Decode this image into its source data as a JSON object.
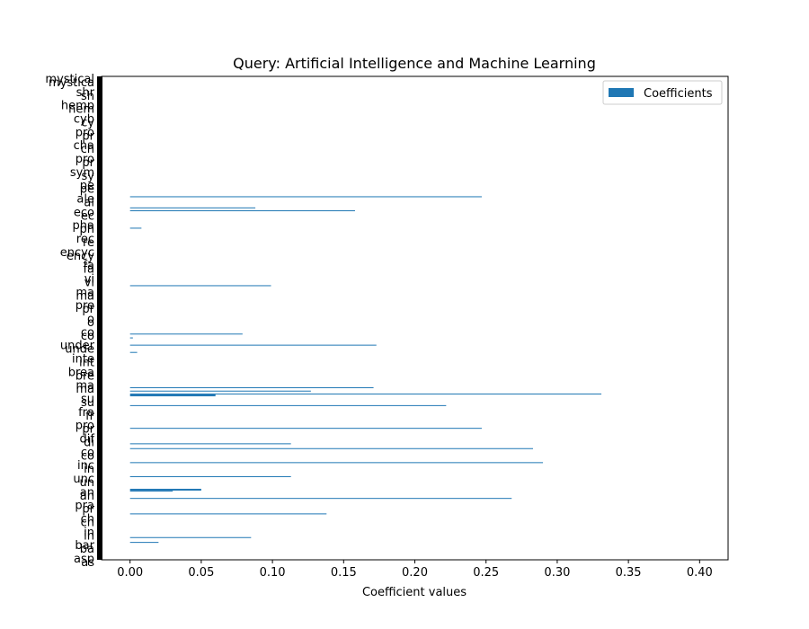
{
  "chart_data": {
    "type": "bar",
    "orientation": "horizontal",
    "title": "Query: Artificial Intelligence and Machine Learning",
    "xlabel": "Coefficient values",
    "ylabel": "",
    "xlim": [
      -0.02,
      0.42
    ],
    "xticks": [
      "0.00",
      "0.05",
      "0.10",
      "0.15",
      "0.20",
      "0.25",
      "0.30",
      "0.35",
      "0.40"
    ],
    "xtick_values": [
      0,
      0.05,
      0.1,
      0.15,
      0.2,
      0.25,
      0.3,
      0.35,
      0.4
    ],
    "legend": {
      "label": "Coefficients",
      "position": "top-right"
    },
    "bar_color": "#1f77b4",
    "visible_category_labels": [
      "mystical",
      "shr",
      "hemp",
      "cyb",
      "pro",
      "cha",
      "pro",
      "sym",
      "pe",
      "ale",
      "eco",
      "pha",
      "rec",
      "encyc",
      "fa",
      "vi",
      "ma",
      "pre",
      "o",
      "co",
      "under",
      "inte",
      "brea",
      "ma",
      "su",
      "fra",
      "pro",
      "dif",
      "co",
      "inc",
      "unc",
      "an",
      "pra",
      "ch",
      "in",
      "bar",
      "asp"
    ],
    "nonzero_bars": [
      {
        "position": 0.036,
        "value": 0.02
      },
      {
        "position": 0.046,
        "value": 0.085
      },
      {
        "position": 0.095,
        "value": 0.138
      },
      {
        "position": 0.127,
        "value": 0.268
      },
      {
        "position": 0.142,
        "value": 0.03
      },
      {
        "position": 0.146,
        "value": 0.05
      },
      {
        "position": 0.172,
        "value": 0.113
      },
      {
        "position": 0.201,
        "value": 0.29
      },
      {
        "position": 0.23,
        "value": 0.283
      },
      {
        "position": 0.24,
        "value": 0.113
      },
      {
        "position": 0.272,
        "value": 0.247
      },
      {
        "position": 0.319,
        "value": 0.222
      },
      {
        "position": 0.341,
        "value": 0.06
      },
      {
        "position": 0.343,
        "value": 0.331
      },
      {
        "position": 0.349,
        "value": 0.127
      },
      {
        "position": 0.356,
        "value": 0.171
      },
      {
        "position": 0.429,
        "value": 0.005
      },
      {
        "position": 0.444,
        "value": 0.173
      },
      {
        "position": 0.459,
        "value": 0.002
      },
      {
        "position": 0.467,
        "value": 0.079
      },
      {
        "position": 0.567,
        "value": 0.099
      },
      {
        "position": 0.686,
        "value": 0.008
      },
      {
        "position": 0.722,
        "value": 0.158
      },
      {
        "position": 0.728,
        "value": 0.088
      },
      {
        "position": 0.751,
        "value": 0.247
      }
    ]
  }
}
